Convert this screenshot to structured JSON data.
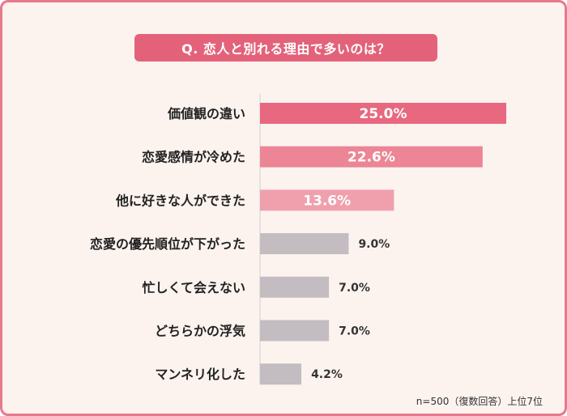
{
  "title": "Q. 恋人と別れる理由で多いのは？",
  "footnote": "n=500（復数回答）上位7位",
  "chart_data": {
    "type": "bar",
    "orientation": "horizontal",
    "categories": [
      "価値観の違い",
      "恋愛感情が冷めた",
      "他に好きな人ができた",
      "恋愛の優先順位が下がった",
      "忙しくて会えない",
      "どちらかの浮気",
      "マンネリ化した"
    ],
    "values": [
      25.0,
      22.6,
      13.6,
      9.0,
      7.0,
      7.0,
      4.2
    ],
    "value_labels": [
      "25.0%",
      "22.6%",
      "13.6%",
      "9.0%",
      "7.0%",
      "7.0%",
      "4.2%"
    ],
    "colors": [
      "#e8687f",
      "#ec8595",
      "#f0a0ad",
      "#c3bdc2",
      "#c3bdc2",
      "#c3bdc2",
      "#c3bdc2"
    ],
    "label_inside": [
      true,
      true,
      true,
      false,
      false,
      false,
      false
    ],
    "xlim": [
      0,
      25.0
    ],
    "grid": false
  }
}
